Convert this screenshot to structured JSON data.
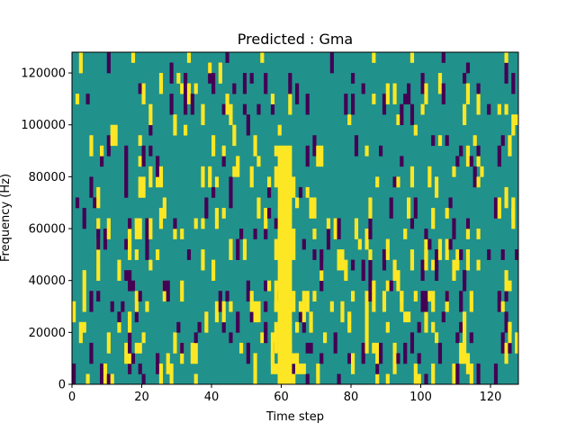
{
  "chart_data": {
    "type": "heatmap",
    "title": "Predicted : Gma",
    "xlabel": "Time step",
    "ylabel": "Frequency (Hz)",
    "xlim": [
      0,
      128
    ],
    "ylim": [
      0,
      128000
    ],
    "x_ticks": [
      0,
      20,
      40,
      60,
      80,
      100,
      120
    ],
    "y_ticks": [
      0,
      20000,
      40000,
      60000,
      80000,
      100000,
      120000
    ],
    "colors": {
      "background": "#21918c",
      "low": "#440154",
      "high": "#fde725"
    },
    "grid": false,
    "legend": "none",
    "ridge": {
      "description_values": "high-value band near time steps 58-63",
      "x_start": 58,
      "x_end": 63,
      "y_top": 90000
    }
  }
}
